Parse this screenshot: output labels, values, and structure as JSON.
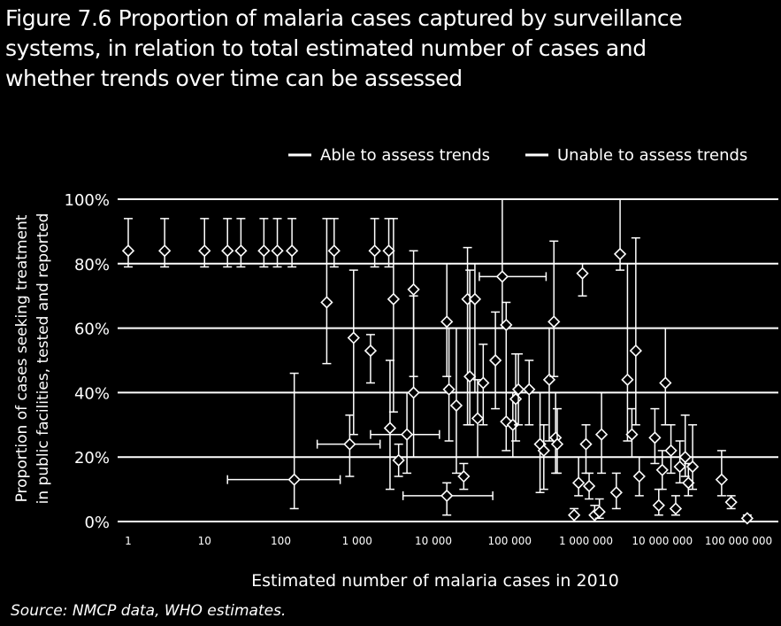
{
  "title_lines": [
    "Figure 7.6 Proportion of malaria cases captured by surveillance",
    "systems, in relation to total estimated number of cases and",
    "whether trends over time can be assessed"
  ],
  "source": "Source: NMCP data, WHO estimates.",
  "colors": {
    "background": "#000000",
    "foreground": "#ffffff"
  },
  "chart_data": {
    "type": "scatter",
    "xlabel": "Estimated number of malaria cases in 2010",
    "ylabel_lines": [
      "Proportion of cases seeking treatment",
      "in public facilities, tested and reported"
    ],
    "x_scale": "log",
    "xlim": [
      1,
      100000000
    ],
    "ylim": [
      0,
      100
    ],
    "x_ticks": [
      {
        "value": 1,
        "label": "1"
      },
      {
        "value": 10,
        "label": "10"
      },
      {
        "value": 100,
        "label": "100"
      },
      {
        "value": 1000,
        "label": "1 000"
      },
      {
        "value": 10000,
        "label": "10 000"
      },
      {
        "value": 100000,
        "label": "100 000"
      },
      {
        "value": 1000000,
        "label": "1 000 000"
      },
      {
        "value": 10000000,
        "label": "10 000 000"
      },
      {
        "value": 100000000,
        "label": "100 000 000"
      }
    ],
    "y_ticks": [
      {
        "value": 0,
        "label": "0%"
      },
      {
        "value": 20,
        "label": "20%"
      },
      {
        "value": 40,
        "label": "40%"
      },
      {
        "value": 60,
        "label": "60%"
      },
      {
        "value": 80,
        "label": "80%"
      },
      {
        "value": 100,
        "label": "100%"
      }
    ],
    "grid": "horizontal",
    "legend_position": "top-right",
    "legend": [
      "Able to assess trends",
      "Unable to assess trends"
    ],
    "points": [
      {
        "x": 1,
        "y": 84,
        "ylo": 79,
        "yhi": 94
      },
      {
        "x": 3,
        "y": 84,
        "ylo": 79,
        "yhi": 94
      },
      {
        "x": 10,
        "y": 84,
        "ylo": 79,
        "yhi": 94
      },
      {
        "x": 20,
        "y": 84,
        "ylo": 79,
        "yhi": 94
      },
      {
        "x": 30,
        "y": 84,
        "ylo": 79,
        "yhi": 94
      },
      {
        "x": 60,
        "y": 84,
        "ylo": 79,
        "yhi": 94
      },
      {
        "x": 90,
        "y": 84,
        "ylo": 79,
        "yhi": 94
      },
      {
        "x": 140,
        "y": 84,
        "ylo": 79,
        "yhi": 94
      },
      {
        "x": 500,
        "y": 84,
        "ylo": 79,
        "yhi": 94
      },
      {
        "x": 1700,
        "y": 84,
        "ylo": 79,
        "yhi": 94
      },
      {
        "x": 2600,
        "y": 84,
        "ylo": 79,
        "yhi": 94
      },
      {
        "x": 400,
        "y": 68,
        "ylo": 49,
        "yhi": 94
      },
      {
        "x": 900,
        "y": 57,
        "ylo": 27,
        "yhi": 78
      },
      {
        "x": 1500,
        "y": 53,
        "ylo": 43,
        "yhi": 58
      },
      {
        "x": 3000,
        "y": 69,
        "ylo": 34,
        "yhi": 94
      },
      {
        "x": 5500,
        "y": 72,
        "ylo": 45,
        "yhi": 84
      },
      {
        "x": 150,
        "y": 13,
        "ylo": 4,
        "yhi": 46,
        "xlo": 20,
        "xhi": 600
      },
      {
        "x": 800,
        "y": 24,
        "ylo": 14,
        "yhi": 33,
        "xlo": 300,
        "xhi": 2000
      },
      {
        "x": 2700,
        "y": 29,
        "ylo": 10,
        "yhi": 50
      },
      {
        "x": 3500,
        "y": 19,
        "ylo": 14,
        "yhi": 24
      },
      {
        "x": 4500,
        "y": 27,
        "ylo": 15,
        "yhi": 40,
        "xlo": 1500,
        "xhi": 12000
      },
      {
        "x": 5500,
        "y": 40,
        "ylo": 20,
        "yhi": 70
      },
      {
        "x": 15000,
        "y": 8,
        "ylo": 2,
        "yhi": 12,
        "xlo": 4000,
        "xhi": 60000
      },
      {
        "x": 15000,
        "y": 62,
        "ylo": 45,
        "yhi": 80
      },
      {
        "x": 16000,
        "y": 41,
        "ylo": 25,
        "yhi": 60
      },
      {
        "x": 20000,
        "y": 36,
        "ylo": 15,
        "yhi": 60
      },
      {
        "x": 25000,
        "y": 14,
        "ylo": 10,
        "yhi": 18
      },
      {
        "x": 28000,
        "y": 69,
        "ylo": 30,
        "yhi": 85
      },
      {
        "x": 30000,
        "y": 45,
        "ylo": 30,
        "yhi": 78
      },
      {
        "x": 35000,
        "y": 69,
        "ylo": 40,
        "yhi": 80
      },
      {
        "x": 38000,
        "y": 32,
        "ylo": 20,
        "yhi": 44
      },
      {
        "x": 45000,
        "y": 43,
        "ylo": 30,
        "yhi": 55
      },
      {
        "x": 65000,
        "y": 50,
        "ylo": 35,
        "yhi": 65
      },
      {
        "x": 80000,
        "y": 76,
        "ylo": 60,
        "yhi": 100,
        "xlo": 40000,
        "xhi": 300000
      },
      {
        "x": 90000,
        "y": 61,
        "ylo": 40,
        "yhi": 68
      },
      {
        "x": 90000,
        "y": 31,
        "ylo": 22,
        "yhi": 40
      },
      {
        "x": 110000,
        "y": 30,
        "ylo": 20,
        "yhi": 40
      },
      {
        "x": 120000,
        "y": 38,
        "ylo": 25,
        "yhi": 52
      },
      {
        "x": 130000,
        "y": 41,
        "ylo": 30,
        "yhi": 52
      },
      {
        "x": 180000,
        "y": 41,
        "ylo": 30,
        "yhi": 50
      },
      {
        "x": 250000,
        "y": 24,
        "ylo": 9,
        "yhi": 40
      },
      {
        "x": 280000,
        "y": 22,
        "ylo": 10,
        "yhi": 30
      },
      {
        "x": 330000,
        "y": 44,
        "ylo": 25,
        "yhi": 60
      },
      {
        "x": 380000,
        "y": 62,
        "ylo": 45,
        "yhi": 87
      },
      {
        "x": 400000,
        "y": 26,
        "ylo": 15,
        "yhi": 40
      },
      {
        "x": 420000,
        "y": 24,
        "ylo": 15,
        "yhi": 35
      },
      {
        "x": 700000,
        "y": 2,
        "ylo": 0,
        "yhi": 4
      },
      {
        "x": 800000,
        "y": 12,
        "ylo": 8,
        "yhi": 20
      },
      {
        "x": 900000,
        "y": 77,
        "ylo": 70,
        "yhi": 80
      },
      {
        "x": 1000000,
        "y": 24,
        "ylo": 15,
        "yhi": 30
      },
      {
        "x": 1100000,
        "y": 11,
        "ylo": 7,
        "yhi": 15
      },
      {
        "x": 1300000,
        "y": 2,
        "ylo": 0,
        "yhi": 5
      },
      {
        "x": 1500000,
        "y": 3,
        "ylo": 1,
        "yhi": 7
      },
      {
        "x": 1600000,
        "y": 27,
        "ylo": 15,
        "yhi": 40
      },
      {
        "x": 2500000,
        "y": 9,
        "ylo": 4,
        "yhi": 15
      },
      {
        "x": 2800000,
        "y": 83,
        "ylo": 78,
        "yhi": 100
      },
      {
        "x": 3500000,
        "y": 44,
        "ylo": 25,
        "yhi": 80
      },
      {
        "x": 4000000,
        "y": 27,
        "ylo": 20,
        "yhi": 35
      },
      {
        "x": 4500000,
        "y": 53,
        "ylo": 30,
        "yhi": 88
      },
      {
        "x": 5000000,
        "y": 14,
        "ylo": 8,
        "yhi": 20
      },
      {
        "x": 8000000,
        "y": 26,
        "ylo": 18,
        "yhi": 35
      },
      {
        "x": 9000000,
        "y": 5,
        "ylo": 2,
        "yhi": 10
      },
      {
        "x": 10000000,
        "y": 16,
        "ylo": 10,
        "yhi": 22
      },
      {
        "x": 11000000,
        "y": 43,
        "ylo": 30,
        "yhi": 60
      },
      {
        "x": 13000000,
        "y": 22,
        "ylo": 15,
        "yhi": 30
      },
      {
        "x": 15000000,
        "y": 4,
        "ylo": 2,
        "yhi": 8
      },
      {
        "x": 17000000,
        "y": 17,
        "ylo": 12,
        "yhi": 25
      },
      {
        "x": 20000000,
        "y": 20,
        "ylo": 14,
        "yhi": 33
      },
      {
        "x": 22000000,
        "y": 12,
        "ylo": 8,
        "yhi": 18
      },
      {
        "x": 25000000,
        "y": 17,
        "ylo": 10,
        "yhi": 30
      },
      {
        "x": 60000000,
        "y": 13,
        "ylo": 8,
        "yhi": 22
      },
      {
        "x": 80000000,
        "y": 6,
        "ylo": 4,
        "yhi": 8
      },
      {
        "x": 130000000,
        "y": 1,
        "ylo": 0,
        "yhi": 2
      }
    ]
  }
}
